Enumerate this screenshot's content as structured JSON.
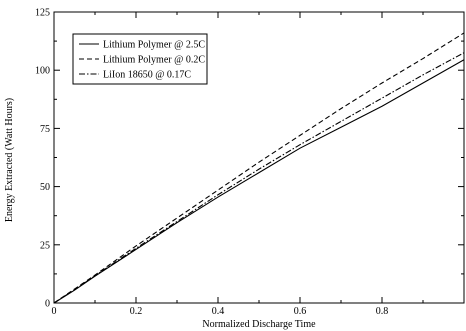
{
  "chart_data": {
    "type": "line",
    "title": "",
    "xlabel": "Normalized Discharge Time",
    "ylabel": "Energy Extracted (Watt Hours)",
    "xlim": [
      0,
      1
    ],
    "ylim": [
      0,
      125
    ],
    "x_ticks": [
      0,
      0.2,
      0.4,
      0.6,
      0.8
    ],
    "x_tick_labels": [
      "0",
      "0.2",
      "0.4",
      "0.6",
      "0.8"
    ],
    "y_ticks": [
      0,
      25,
      50,
      75,
      100,
      125
    ],
    "y_tick_labels": [
      "0",
      "25",
      "50",
      "75",
      "100",
      "125"
    ],
    "grid": false,
    "legend_position": "top-left",
    "series": [
      {
        "name": "Lithium Polymer @ 2.5C",
        "line_style": "solid",
        "color": "#000000",
        "x": [
          0,
          0.05,
          0.1,
          0.2,
          0.3,
          0.4,
          0.5,
          0.6,
          0.7,
          0.8,
          0.9,
          1.0
        ],
        "y": [
          0,
          5.5,
          11.5,
          23,
          34.5,
          45.5,
          56,
          66.5,
          75.5,
          84.5,
          94.5,
          104.5
        ]
      },
      {
        "name": "Lithium Polymer @ 0.2C",
        "line_style": "dashed",
        "color": "#000000",
        "x": [
          0,
          0.05,
          0.1,
          0.2,
          0.3,
          0.4,
          0.5,
          0.6,
          0.7,
          0.8,
          0.9,
          1.0
        ],
        "y": [
          0,
          6,
          12,
          24.5,
          36.5,
          48.5,
          60.5,
          72,
          83.5,
          94.5,
          105,
          116
        ]
      },
      {
        "name": "LiIon 18650 @ 0.17C",
        "line_style": "dash-dot",
        "color": "#000000",
        "x": [
          0,
          0.05,
          0.1,
          0.2,
          0.3,
          0.4,
          0.5,
          0.6,
          0.7,
          0.8,
          0.9,
          1.0
        ],
        "y": [
          0,
          5.7,
          11.7,
          23.5,
          35,
          46.5,
          57.5,
          68,
          78,
          88,
          98,
          107.5
        ]
      }
    ]
  }
}
